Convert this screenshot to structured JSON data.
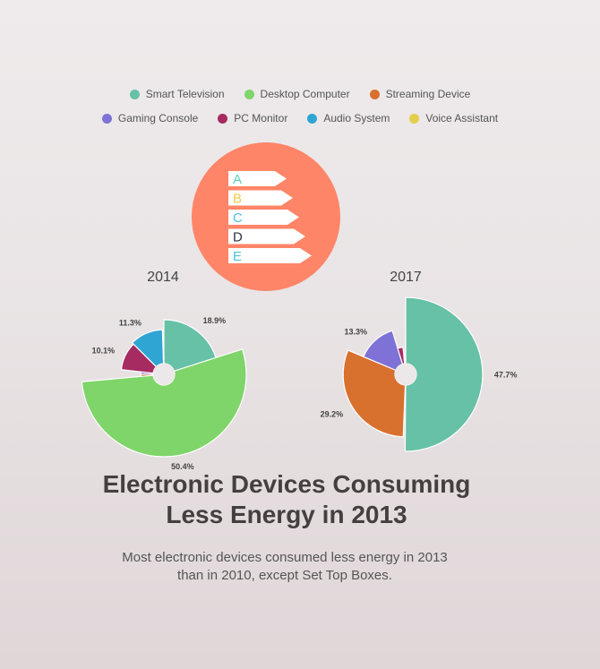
{
  "legend": [
    {
      "label": "Smart Television",
      "color": "#66c1a6"
    },
    {
      "label": "Desktop Computer",
      "color": "#7fd569"
    },
    {
      "label": "Streaming Device",
      "color": "#d8702e"
    },
    {
      "label": "Gaming Console",
      "color": "#7e72d6"
    },
    {
      "label": "PC Monitor",
      "color": "#a52b60"
    },
    {
      "label": "Audio System",
      "color": "#2fa5d4"
    },
    {
      "label": "Voice Assistant",
      "color": "#e3cf4a"
    }
  ],
  "energy_badge": {
    "circle_color": "#ff8568",
    "ratings": [
      {
        "letter": "A",
        "color": "#5bd0b8"
      },
      {
        "letter": "B",
        "color": "#f5c94a"
      },
      {
        "letter": "C",
        "color": "#4fc2dc"
      },
      {
        "letter": "D",
        "color": "#2a3245"
      },
      {
        "letter": "E",
        "color": "#4fc2dc"
      }
    ]
  },
  "chart_data": [
    {
      "type": "pie",
      "title": "2014",
      "categories": [
        "Smart Television",
        "Desktop Computer",
        "Streaming Device",
        "Gaming Console",
        "PC Monitor",
        "Audio System",
        "Voice Assistant"
      ],
      "values": [
        18.9,
        50.4,
        1.5,
        1.5,
        10.1,
        11.3,
        0.5
      ],
      "labels": [
        "18.9%",
        "50.4%",
        "",
        "",
        "10.1%",
        "11.3%",
        ""
      ]
    },
    {
      "type": "pie",
      "title": "2017",
      "categories": [
        "Smart Television",
        "Desktop Computer",
        "Streaming Device",
        "Gaming Console",
        "PC Monitor",
        "Audio System",
        "Voice Assistant"
      ],
      "values": [
        47.7,
        0.5,
        29.2,
        13.3,
        3.0,
        0.5,
        1.0
      ],
      "labels": [
        "47.7%",
        "",
        "29.2%",
        "13.3%",
        "",
        "",
        ""
      ]
    }
  ],
  "title": "Electronic Devices Consuming\nLess Energy in 2013",
  "subtitle": "Most electronic devices consumed less energy in 2013\nthan in 2010, except Set Top Boxes."
}
